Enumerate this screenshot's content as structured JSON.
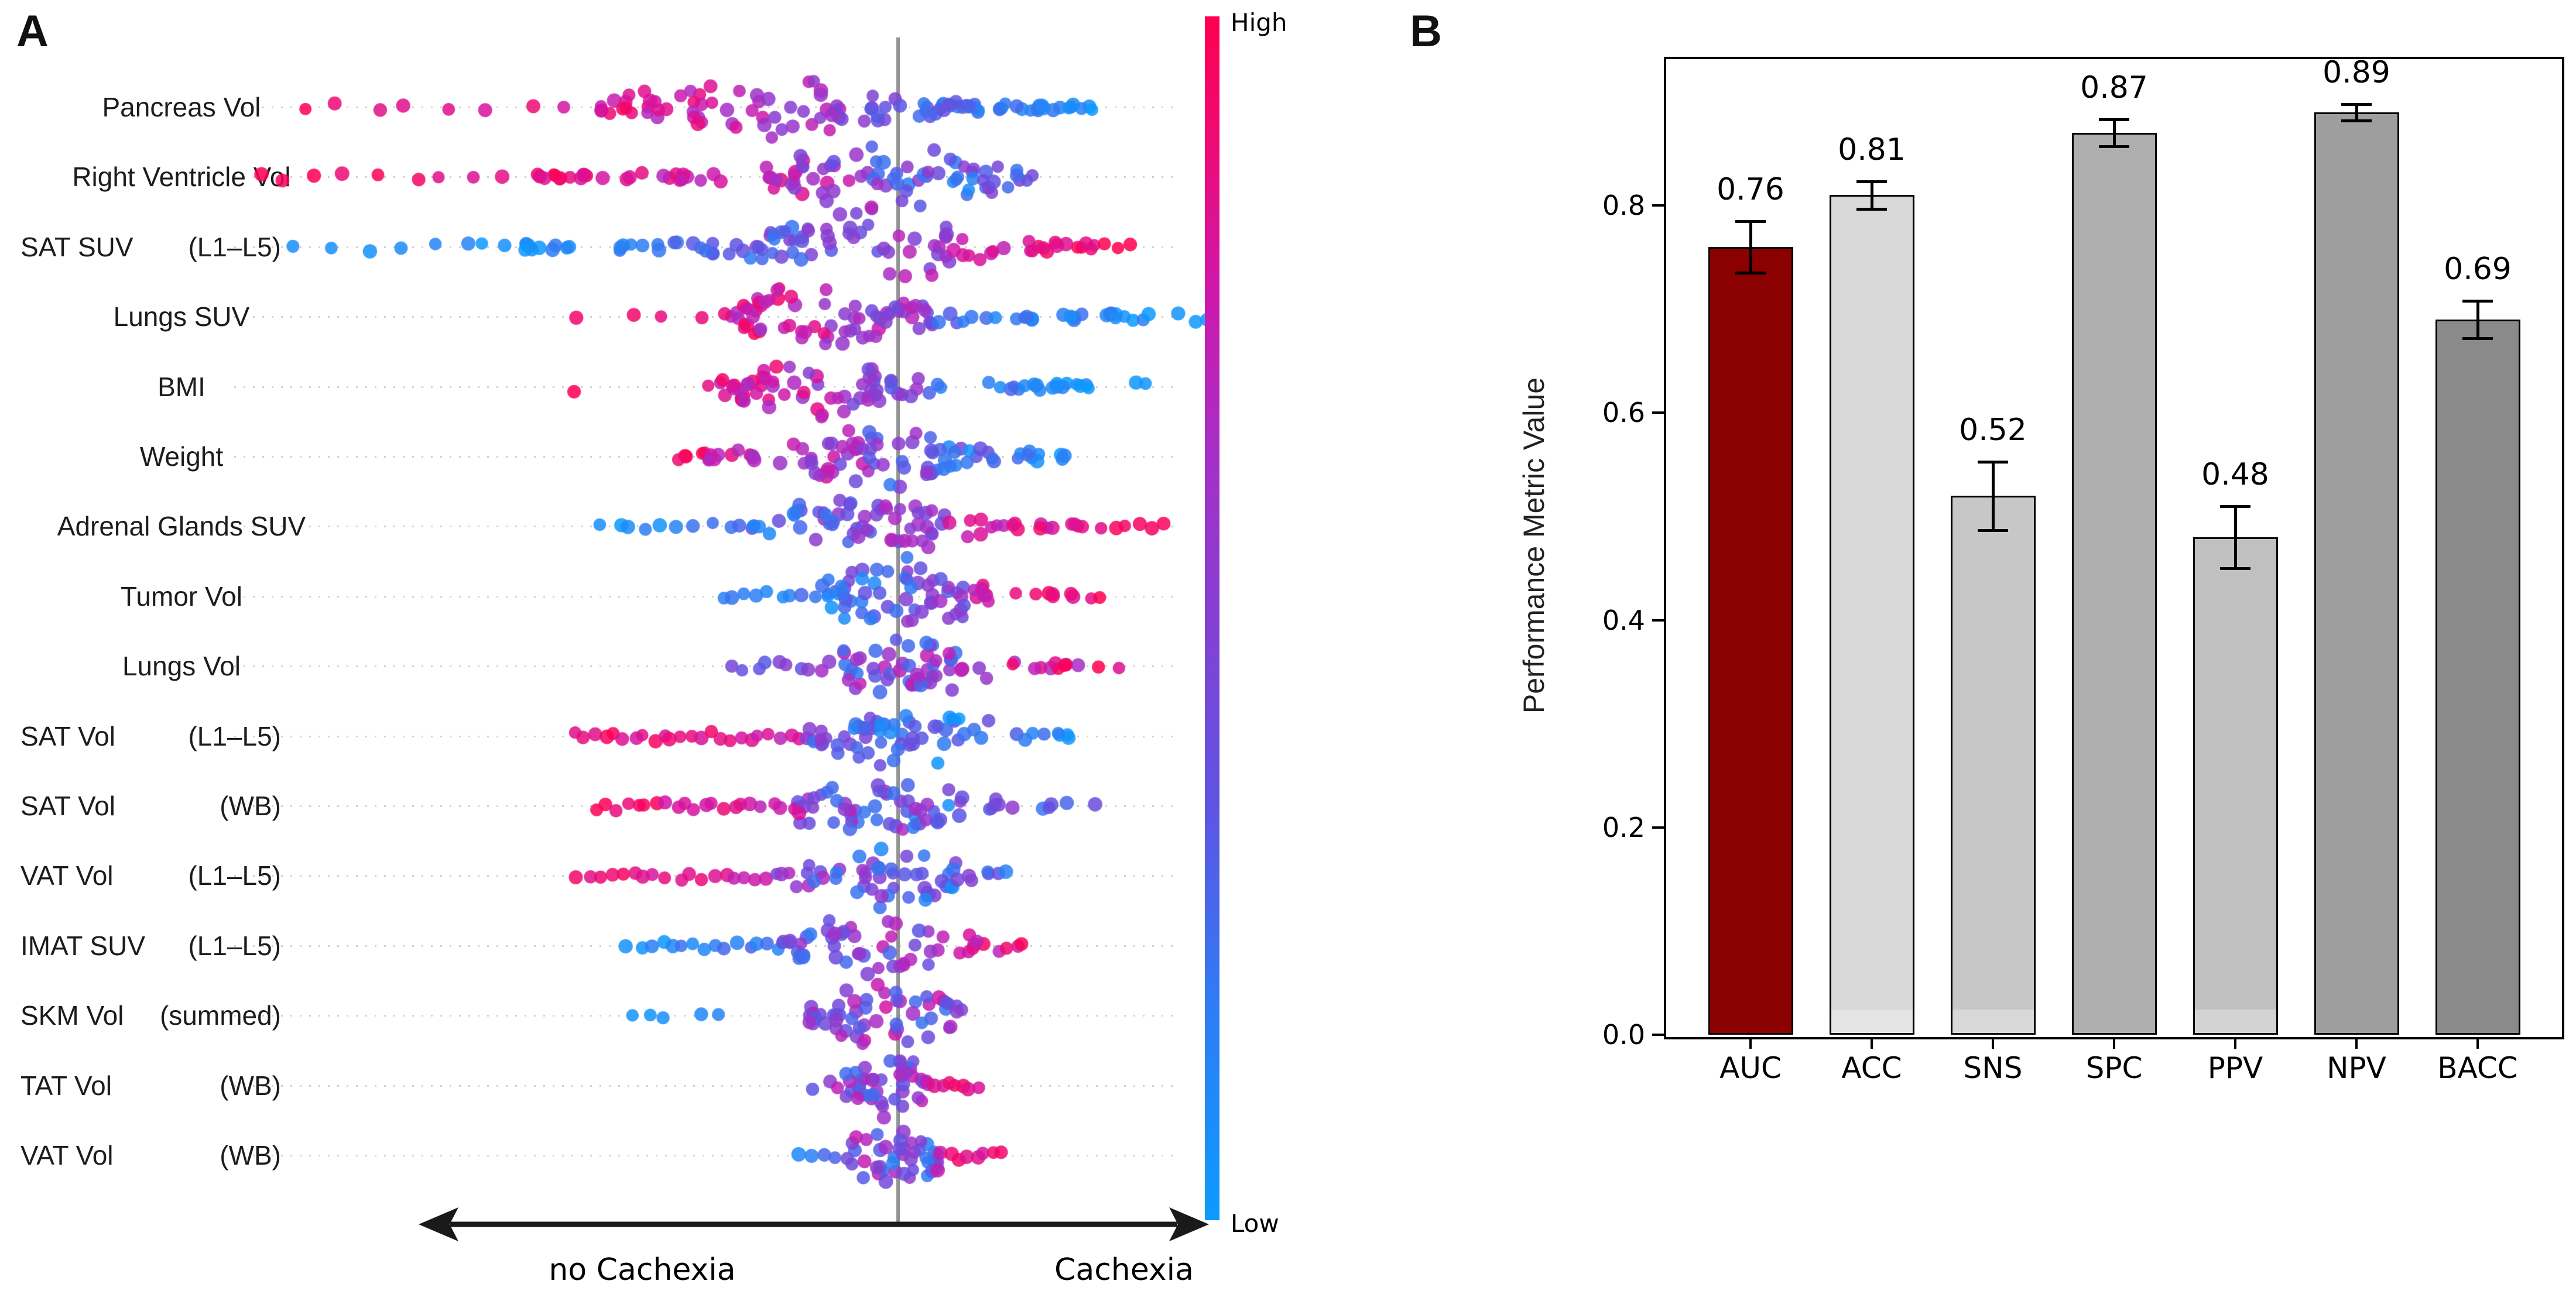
{
  "figure": {
    "background": "#ffffff",
    "panel_a_label": "A",
    "panel_b_label": "B"
  },
  "panel_a": {
    "colorbar": {
      "high_label": "High",
      "low_label": "Low",
      "stops": [
        [
          0,
          "#0B9BFF"
        ],
        [
          0.18,
          "#2F7CF3"
        ],
        [
          0.34,
          "#5E55E3"
        ],
        [
          0.5,
          "#8440D2"
        ],
        [
          0.64,
          "#A72FC6"
        ],
        [
          0.78,
          "#D116A8"
        ],
        [
          0.9,
          "#EE0A72"
        ],
        [
          1,
          "#FF0051"
        ]
      ]
    }
  },
  "chart_data": [
    {
      "type": "scatter",
      "subtype": "beeswarm-shap",
      "title": "",
      "xlabel_left": "no Cachexia",
      "xlabel_right": "Cachexia",
      "color_high": "#FF0051",
      "color_low": "#0B9BFF",
      "colorbar_high_label": "High",
      "colorbar_low_label": "Low",
      "features": [
        {
          "label": "Pancreas Vol",
          "suffix": "",
          "peak": -230,
          "sigma": 150,
          "maxh": 58,
          "segments": [
            [
              -1060,
              -520,
              8,
              0.95,
              0.8,
              0.08,
              1
            ],
            [
              -520,
              -60,
              60,
              0.9,
              0.55,
              0.15,
              0
            ],
            [
              -60,
              180,
              35,
              0.45,
              0.15,
              0.12,
              0
            ],
            [
              180,
              345,
              18,
              0.2,
              0.05,
              0.08,
              0
            ]
          ]
        },
        {
          "label": "Right Ventricle Vol",
          "suffix": "",
          "peak": -20,
          "sigma": 130,
          "maxh": 64,
          "segments": [
            [
              -1130,
              -640,
              9,
              1,
              0.85,
              0.06,
              1
            ],
            [
              -640,
              -210,
              32,
              0.95,
              0.7,
              0.12,
              0
            ],
            [
              -210,
              150,
              62,
              0.65,
              0.25,
              0.25,
              0
            ],
            [
              150,
              230,
              10,
              0.45,
              0.3,
              0.15,
              0
            ]
          ]
        },
        {
          "label": "SAT SUV",
          "suffix": "(L1–L5)",
          "peak": -40,
          "sigma": 140,
          "maxh": 56,
          "segments": [
            [
              -1060,
              -720,
              6,
              0.05,
              0.1,
              0.05,
              1
            ],
            [
              -720,
              -260,
              30,
              0.05,
              0.3,
              0.1,
              0
            ],
            [
              -260,
              110,
              55,
              0.3,
              0.65,
              0.18,
              0
            ],
            [
              110,
              340,
              20,
              0.75,
              0.95,
              0.1,
              0
            ],
            [
              340,
              400,
              3,
              1,
              1,
              0.02,
              1
            ]
          ]
        },
        {
          "label": "Lungs SUV",
          "suffix": "",
          "peak": -120,
          "sigma": 110,
          "maxh": 62,
          "segments": [
            [
              -580,
              -300,
              4,
              0.9,
              0.85,
              0.08,
              1
            ],
            [
              -300,
              60,
              70,
              0.85,
              0.5,
              0.2,
              0
            ],
            [
              60,
              430,
              26,
              0.3,
              0.05,
              0.12,
              0
            ],
            [
              470,
              545,
              3,
              0.05,
              0.02,
              0.03,
              1
            ]
          ]
        },
        {
          "label": "BMI",
          "suffix": "",
          "peak": -130,
          "sigma": 105,
          "maxh": 58,
          "segments": [
            [
              -560,
              -520,
              1,
              1,
              1,
              0,
              1
            ],
            [
              -330,
              40,
              62,
              0.9,
              0.45,
              0.2,
              0
            ],
            [
              40,
              330,
              22,
              0.3,
              0.05,
              0.12,
              0
            ],
            [
              390,
              440,
              2,
              0.05,
              0.05,
              0.03,
              1
            ]
          ]
        },
        {
          "label": "Weight",
          "suffix": "",
          "peak": -60,
          "sigma": 115,
          "maxh": 60,
          "segments": [
            [
              -380,
              -140,
              25,
              0.9,
              0.6,
              0.15,
              0
            ],
            [
              -140,
              140,
              55,
              0.6,
              0.25,
              0.25,
              0
            ],
            [
              140,
              285,
              14,
              0.3,
              0.1,
              0.12,
              0
            ]
          ]
        },
        {
          "label": "Adrenal Glands SUV",
          "suffix": "",
          "peak": -60,
          "sigma": 110,
          "maxh": 58,
          "segments": [
            [
              -520,
              -250,
              10,
              0.05,
              0.2,
              0.08,
              1
            ],
            [
              -250,
              80,
              58,
              0.25,
              0.6,
              0.2,
              0
            ],
            [
              80,
              360,
              20,
              0.7,
              0.95,
              0.12,
              0
            ],
            [
              360,
              470,
              5,
              0.95,
              1,
              0.04,
              1
            ]
          ]
        },
        {
          "label": "Tumor Vol",
          "suffix": "",
          "peak": 10,
          "sigma": 100,
          "maxh": 60,
          "segments": [
            [
              -310,
              -130,
              9,
              0.1,
              0.2,
              0.1,
              1
            ],
            [
              -130,
              120,
              58,
              0.2,
              0.5,
              0.22,
              0
            ],
            [
              120,
              370,
              16,
              0.75,
              1,
              0.12,
              0
            ]
          ]
        },
        {
          "label": "Lungs Vol",
          "suffix": "",
          "peak": 0,
          "sigma": 95,
          "maxh": 56,
          "segments": [
            [
              -290,
              -120,
              9,
              0.3,
              0.5,
              0.25,
              1
            ],
            [
              -120,
              110,
              52,
              0.5,
              0.5,
              0.3,
              0
            ],
            [
              110,
              400,
              15,
              0.7,
              0.95,
              0.25,
              0
            ]
          ]
        },
        {
          "label": "SAT Vol",
          "suffix": "(L1–L5)",
          "peak": 20,
          "sigma": 100,
          "maxh": 60,
          "segments": [
            [
              -560,
              -160,
              24,
              0.95,
              0.75,
              0.1,
              1
            ],
            [
              -160,
              130,
              56,
              0.4,
              0.15,
              0.2,
              0
            ],
            [
              130,
              310,
              10,
              0.3,
              0.15,
              0.15,
              0
            ]
          ]
        },
        {
          "label": "SAT Vol",
          "suffix": "(WB)",
          "peak": -40,
          "sigma": 100,
          "maxh": 58,
          "segments": [
            [
              -520,
              -190,
              20,
              0.95,
              0.75,
              0.1,
              1
            ],
            [
              -190,
              90,
              52,
              0.6,
              0.3,
              0.28,
              0
            ],
            [
              90,
              340,
              14,
              0.5,
              0.3,
              0.18,
              0
            ]
          ]
        },
        {
          "label": "VAT Vol",
          "suffix": "(L1–L5)",
          "peak": -30,
          "sigma": 95,
          "maxh": 55,
          "segments": [
            [
              -560,
              -210,
              18,
              0.95,
              0.8,
              0.1,
              1
            ],
            [
              -210,
              100,
              50,
              0.5,
              0.25,
              0.25,
              0
            ],
            [
              100,
              220,
              7,
              0.4,
              0.25,
              0.15,
              0
            ]
          ]
        },
        {
          "label": "IMAT SUV",
          "suffix": "(L1–L5)",
          "peak": -40,
          "sigma": 95,
          "maxh": 52,
          "segments": [
            [
              -470,
              -210,
              14,
              0.05,
              0.25,
              0.1,
              1
            ],
            [
              -210,
              80,
              46,
              0.35,
              0.6,
              0.25,
              0
            ],
            [
              80,
              265,
              11,
              0.7,
              0.95,
              0.15,
              0
            ]
          ]
        },
        {
          "label": "SKM Vol",
          "suffix": "(summed)",
          "peak": -10,
          "sigma": 85,
          "maxh": 58,
          "segments": [
            [
              -460,
              -380,
              3,
              0.05,
              0.1,
              0.05,
              1
            ],
            [
              -350,
              -290,
              2,
              0.1,
              0.1,
              0.05,
              1
            ],
            [
              -160,
              95,
              52,
              0.5,
              0.5,
              0.3,
              0
            ],
            [
              95,
              130,
              3,
              0.6,
              0.6,
              0.2,
              0
            ]
          ]
        },
        {
          "label": "TAT Vol",
          "suffix": "(WB)",
          "peak": -10,
          "sigma": 70,
          "maxh": 52,
          "segments": [
            [
              -150,
              -95,
              3,
              0.2,
              0.6,
              0.2,
              1
            ],
            [
              -95,
              60,
              44,
              0.5,
              0.5,
              0.3,
              0
            ],
            [
              60,
              140,
              7,
              0.75,
              0.9,
              0.12,
              1
            ]
          ]
        },
        {
          "label": "VAT Vol",
          "suffix": "(WB)",
          "peak": -10,
          "sigma": 70,
          "maxh": 54,
          "segments": [
            [
              -180,
              -90,
              4,
              0.15,
              0.3,
              0.1,
              1
            ],
            [
              -90,
              70,
              44,
              0.45,
              0.45,
              0.3,
              0
            ],
            [
              70,
              185,
              8,
              0.8,
              0.95,
              0.1,
              1
            ]
          ]
        }
      ]
    },
    {
      "type": "bar",
      "categories": [
        "AUC",
        "ACC",
        "SNS",
        "SPC",
        "PPV",
        "NPV",
        "BACC"
      ],
      "values": [
        0.76,
        0.81,
        0.52,
        0.87,
        0.48,
        0.89,
        0.69
      ],
      "errors": [
        0.025,
        0.013,
        0.033,
        0.013,
        0.03,
        0.008,
        0.018
      ],
      "value_labels": [
        "0.76",
        "0.81",
        "0.52",
        "0.87",
        "0.48",
        "0.89",
        "0.69"
      ],
      "bar_colors": [
        "#8B0000",
        "#D9D9D9",
        "#C7C7C7",
        "#AFAFAF",
        "#C0C0C0",
        "#9E9E9E",
        "#8A8A8A"
      ],
      "base_strip": [
        false,
        true,
        true,
        false,
        true,
        false,
        false
      ],
      "ylabel": "Performance Metric Value",
      "yticks": [
        "0.0",
        "0.2",
        "0.4",
        "0.6",
        "0.8"
      ],
      "ylim": [
        0,
        0.943
      ],
      "grid": false,
      "legend": "none"
    }
  ]
}
